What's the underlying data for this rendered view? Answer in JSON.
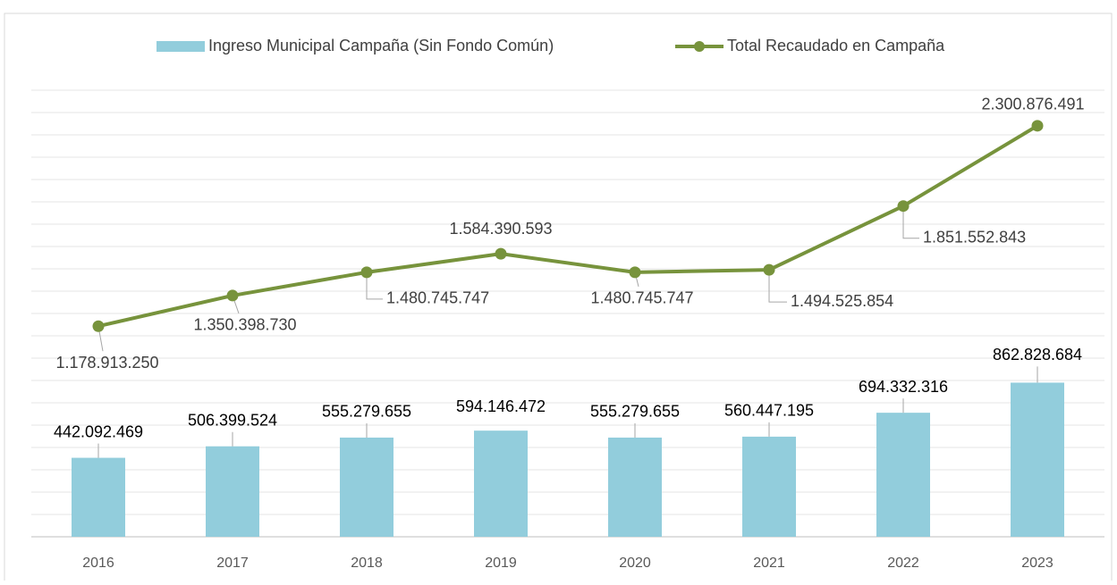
{
  "chart_data": {
    "type": "bar_line",
    "categories": [
      "2016",
      "2017",
      "2018",
      "2019",
      "2020",
      "2021",
      "2022",
      "2023"
    ],
    "series": [
      {
        "name": "Ingreso Municipal Campaña (Sin Fondo Común)",
        "type": "bar",
        "color": "#92cddc",
        "values": [
          442092469,
          506399524,
          555279655,
          594146472,
          555279655,
          560447195,
          694332316,
          862828684
        ],
        "value_labels": [
          "442.092.469",
          "506.399.524",
          "555.279.655",
          "594.146.472",
          "555.279.655",
          "560.447.195",
          "694.332.316",
          "862.828.684"
        ]
      },
      {
        "name": "Total Recaudado en Campaña",
        "type": "line",
        "color": "#77933c",
        "values": [
          1178913250,
          1350398730,
          1480745747,
          1584390593,
          1480745747,
          1494525854,
          1851552843,
          2300876491
        ],
        "value_labels": [
          "1.178.913.250",
          "1.350.398.730",
          "1.480.745.747",
          "1.584.390.593",
          "1.480.745.747",
          "1.494.525.854",
          "1.851.552.843",
          "2.300.876.491"
        ]
      }
    ],
    "ylim": [
      0,
      2500000000
    ],
    "yticks": [
      0,
      125000000,
      250000000,
      375000000,
      500000000,
      625000000,
      750000000,
      875000000,
      1000000000,
      1125000000,
      1250000000,
      1375000000,
      1500000000,
      1625000000,
      1750000000,
      1875000000,
      2000000000,
      2125000000,
      2250000000,
      2375000000,
      2500000000
    ],
    "grid": true,
    "legend": "top"
  }
}
